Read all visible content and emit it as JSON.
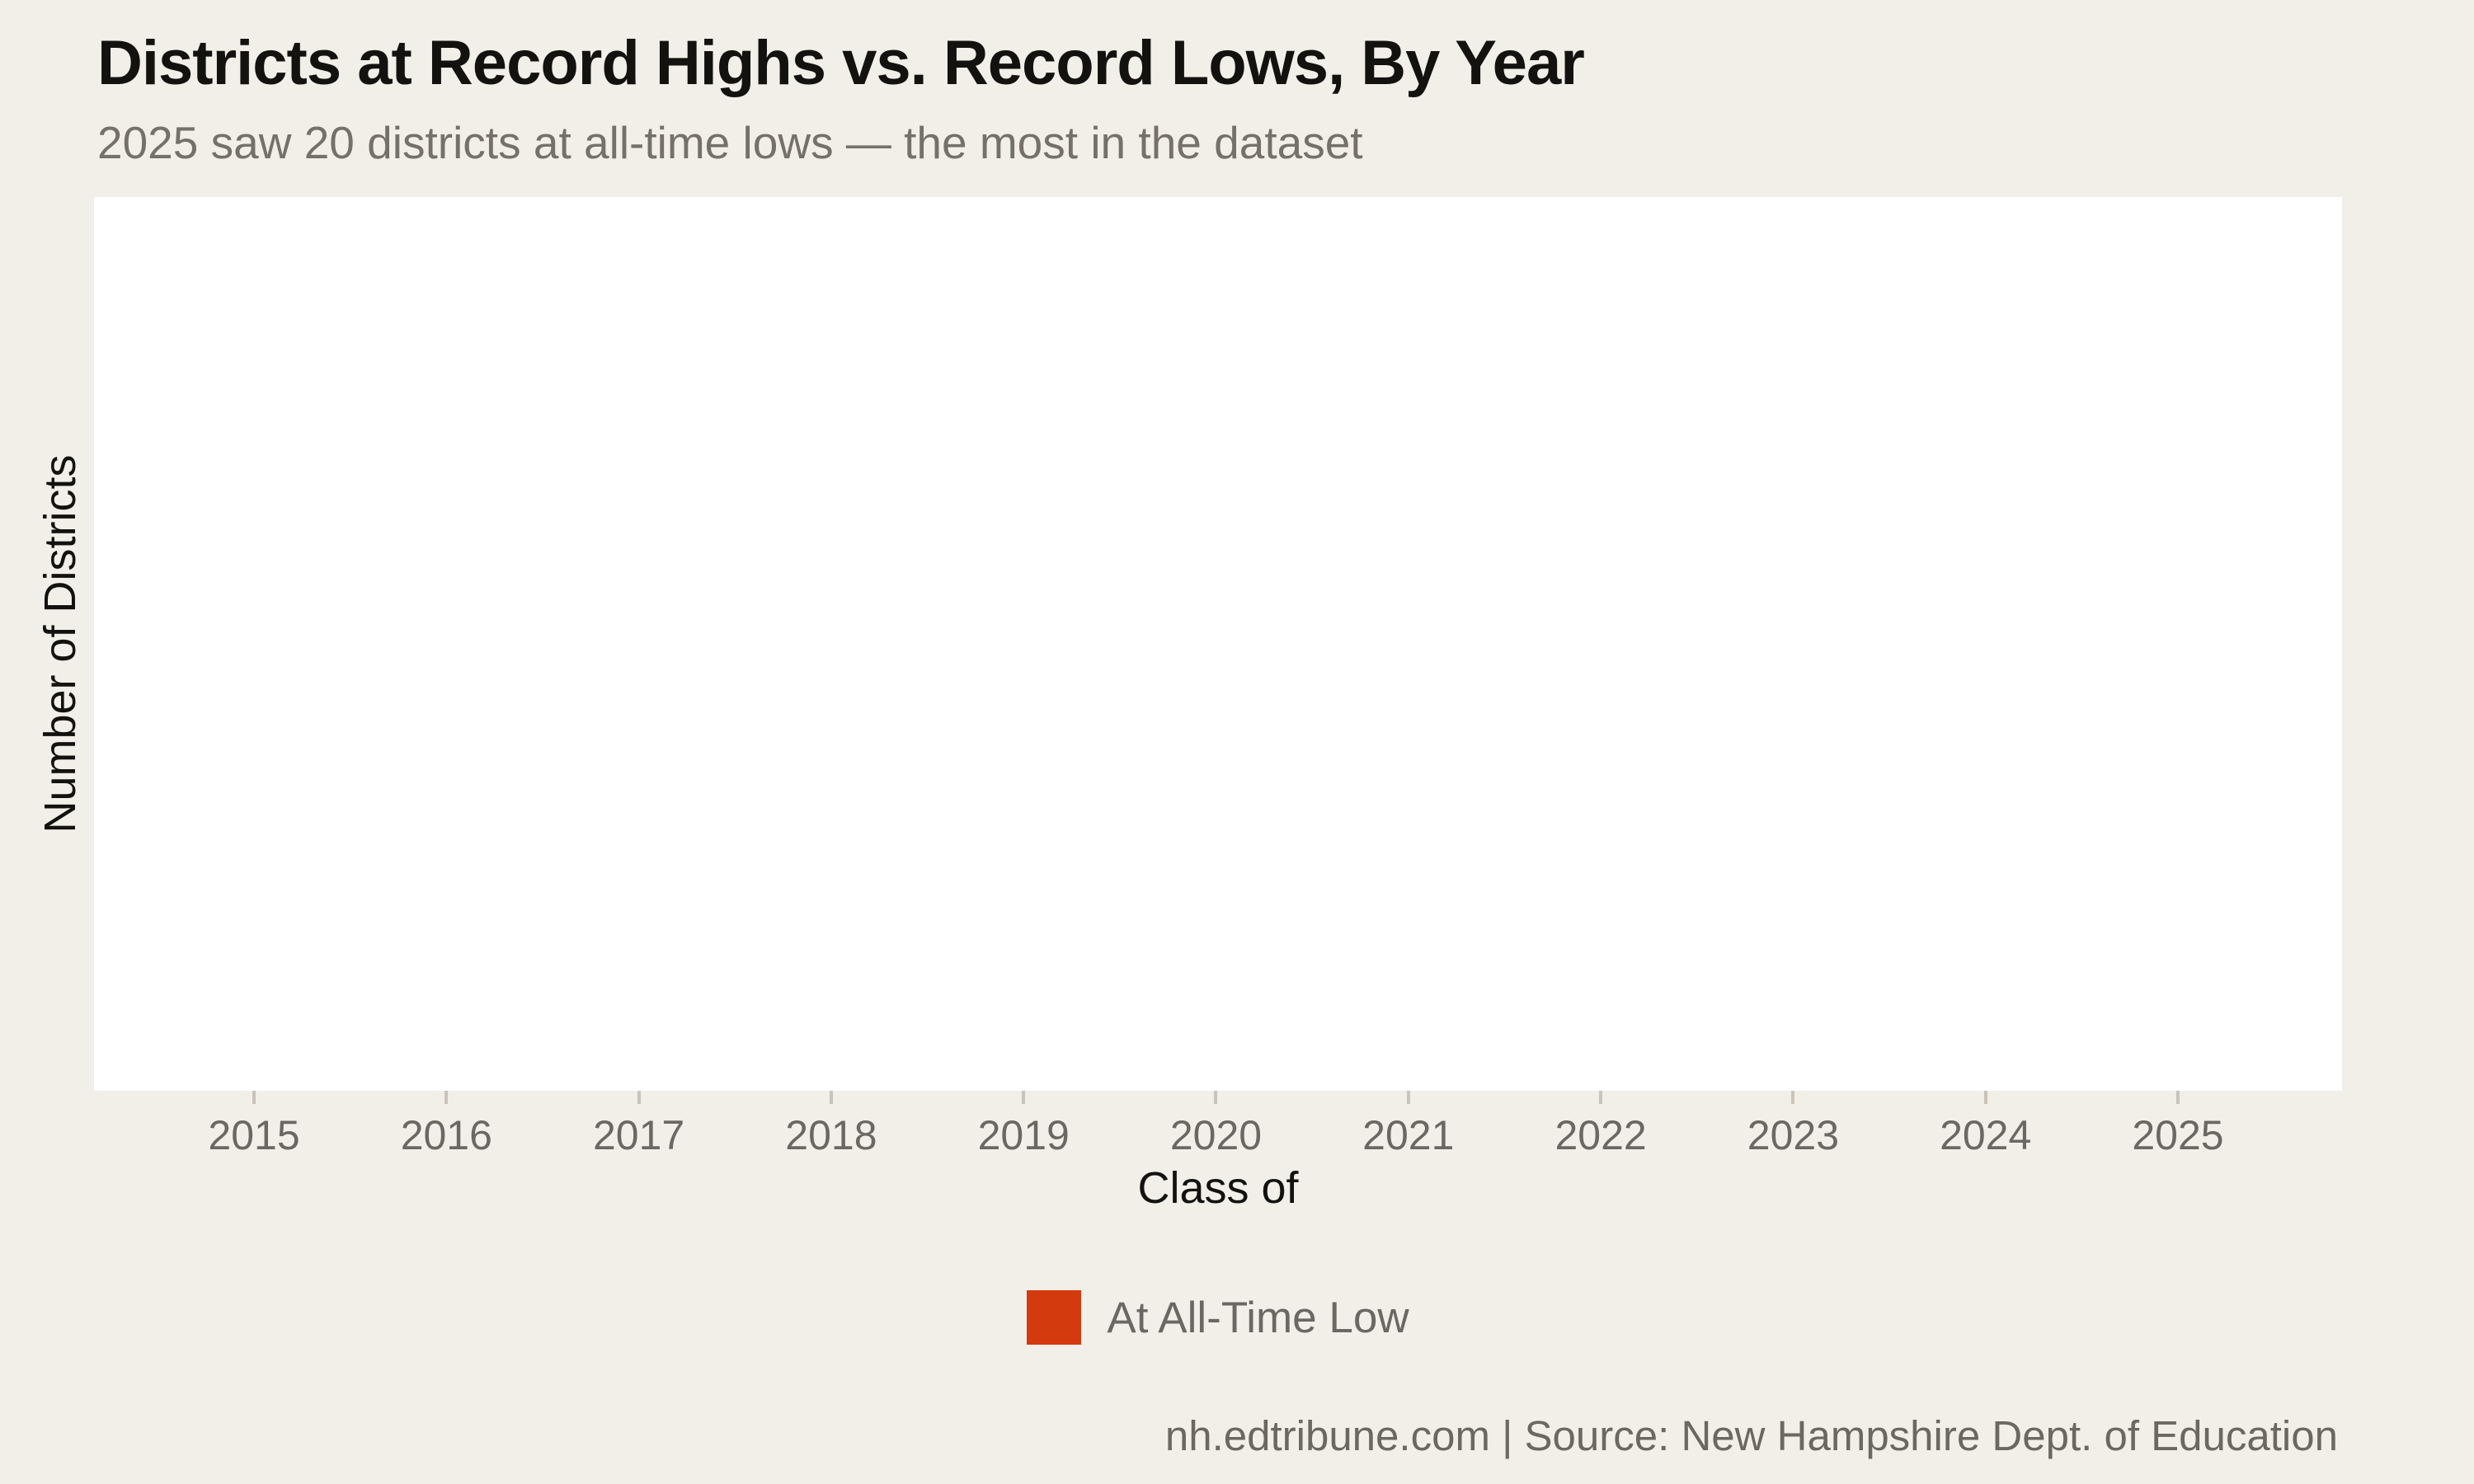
{
  "header": {
    "title": "Districts at Record Highs vs. Record Lows, By Year",
    "subtitle": "2025 saw 20 districts at all-time lows — the most in the dataset"
  },
  "legend": {
    "items": [
      {
        "label": "At All-Time Low",
        "color": "#d33a0e"
      }
    ]
  },
  "footer": {
    "credit": "nh.edtribune.com | Source: New Hampshire Dept. of Education"
  },
  "colors": {
    "background": "#f2efe9",
    "panel": "#ffffff",
    "accent_red": "#d33a0e",
    "title_text": "#14120f",
    "muted_text": "#6b6762",
    "tick_mark": "#c9c3b9"
  },
  "chart_data": {
    "type": "bar",
    "title": "Districts at Record Highs vs. Record Lows, By Year",
    "subtitle": "2025 saw 20 districts at all-time lows — the most in the dataset",
    "categories": [
      "2015",
      "2016",
      "2017",
      "2018",
      "2019",
      "2020",
      "2021",
      "2022",
      "2023",
      "2024",
      "2025"
    ],
    "series": [
      {
        "name": "At All-Time Low",
        "color": "#d33a0e",
        "values": []
      }
    ],
    "xlabel": "Class of",
    "ylabel": "Number of Districts",
    "grid": "off",
    "legend_position": "bottom",
    "y_tick_labels": "none shown",
    "bars_rendered": false
  }
}
